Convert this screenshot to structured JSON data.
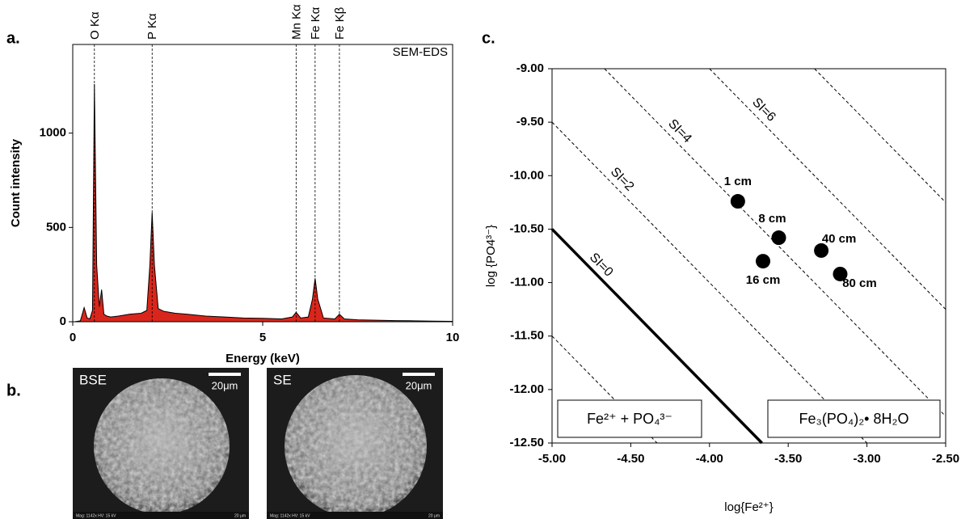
{
  "chart_data": [
    {
      "type": "area",
      "panel_label": "a.",
      "annotation": "SEM-EDS",
      "x_label": "Energy (keV)",
      "y_label": "Count intensity",
      "x": [
        0.05,
        0.2,
        0.3,
        0.38,
        0.45,
        0.52,
        0.57,
        0.63,
        0.7,
        0.76,
        0.82,
        0.9,
        1.0,
        1.2,
        1.5,
        1.8,
        1.95,
        2.03,
        2.09,
        2.15,
        2.25,
        2.4,
        2.7,
        3.0,
        3.5,
        4.0,
        4.5,
        5.0,
        5.5,
        5.78,
        5.88,
        6.0,
        6.2,
        6.31,
        6.38,
        6.45,
        6.6,
        6.9,
        7.02,
        7.15,
        7.5,
        8.0,
        8.5,
        9.0,
        9.5,
        10.0
      ],
      "values": [
        0,
        5,
        75,
        20,
        15,
        60,
        1260,
        300,
        80,
        170,
        40,
        30,
        25,
        30,
        40,
        45,
        60,
        300,
        580,
        300,
        70,
        55,
        45,
        40,
        30,
        25,
        20,
        18,
        15,
        25,
        50,
        20,
        25,
        120,
        230,
        120,
        20,
        15,
        40,
        15,
        10,
        8,
        6,
        5,
        3,
        2
      ],
      "color": "#d9261c",
      "peaks": [
        {
          "label": "O Kα",
          "x": 0.57
        },
        {
          "label": "P Kα",
          "x": 2.09
        },
        {
          "label": "Mn Kα",
          "x": 5.88
        },
        {
          "label": "Fe Kα",
          "x": 6.38
        },
        {
          "label": "Fe Kβ",
          "x": 7.02
        }
      ],
      "xlim": [
        0,
        10
      ],
      "xticks": [
        0,
        5,
        10
      ],
      "ylim": [
        0,
        1470
      ],
      "yticks": [
        0,
        500,
        1000
      ]
    },
    {
      "type": "image",
      "panel_label": "b.",
      "images": [
        {
          "label": "BSE",
          "scale": "20μm",
          "footer_left": "Mag: 1142x   HV: 15 kV",
          "footer_right": "20 μm"
        },
        {
          "label": "SE",
          "scale": "20μm",
          "footer_left": "Mag: 1142x   HV: 15 kV",
          "footer_right": "20 μm"
        }
      ]
    },
    {
      "type": "scatter",
      "panel_label": "c.",
      "x_label": "log{Fe²⁺}",
      "y_label": "log {PO4³⁻}",
      "x": [
        -3.82,
        -3.56,
        -3.66,
        -3.29,
        -3.17
      ],
      "values": [
        -10.24,
        -10.58,
        -10.8,
        -10.7,
        -10.92
      ],
      "labels": [
        "1 cm",
        "8 cm",
        "16 cm",
        "40 cm",
        "80 cm"
      ],
      "color": "#000000",
      "lines": [
        {
          "x": [
            -5,
            -4.333
          ],
          "values": [
            -11.5,
            -12.5
          ],
          "dashed": true
        },
        {
          "name": "SI=0",
          "x": [
            -5,
            -3.667
          ],
          "values": [
            -10.5,
            -12.5
          ],
          "dashed": false
        },
        {
          "name": "SI=2",
          "x": [
            -5,
            -3
          ],
          "values": [
            -9.5,
            -12.5
          ],
          "dashed": true
        },
        {
          "name": "SI=4",
          "x": [
            -4.667,
            -2.5
          ],
          "values": [
            -9,
            -12.25
          ],
          "dashed": true
        },
        {
          "name": "SI=6",
          "x": [
            -4,
            -2.5
          ],
          "values": [
            -9,
            -11.25
          ],
          "dashed": true
        },
        {
          "x": [
            -3.333,
            -2.5
          ],
          "values": [
            -9,
            -10.25
          ],
          "dashed": true
        }
      ],
      "boxes": [
        "Fe²⁺ + PO₄³⁻",
        "Fe₃(PO₄)₂• 8H₂O"
      ],
      "xlim": [
        -5,
        -2.5
      ],
      "ylim": [
        -12.5,
        -9
      ],
      "xticks": [
        {
          "value": -5,
          "label": "-5.00"
        },
        {
          "value": -4.5,
          "label": "-4.50"
        },
        {
          "value": -4,
          "label": "-4.00"
        },
        {
          "value": -3.5,
          "label": "-3.50"
        },
        {
          "value": -3,
          "label": "-3.00"
        },
        {
          "value": -2.5,
          "label": "-2.50"
        }
      ],
      "yticks": [
        {
          "value": -9,
          "label": "-9.00"
        },
        {
          "value": -9.5,
          "label": "-9.50"
        },
        {
          "value": -10,
          "label": "-10.00"
        },
        {
          "value": -10.5,
          "label": "-10.50"
        },
        {
          "value": -11,
          "label": "-11.00"
        },
        {
          "value": -11.5,
          "label": "-11.50"
        },
        {
          "value": -12,
          "label": "-12.00"
        },
        {
          "value": -12.5,
          "label": "-12.50"
        }
      ]
    }
  ]
}
